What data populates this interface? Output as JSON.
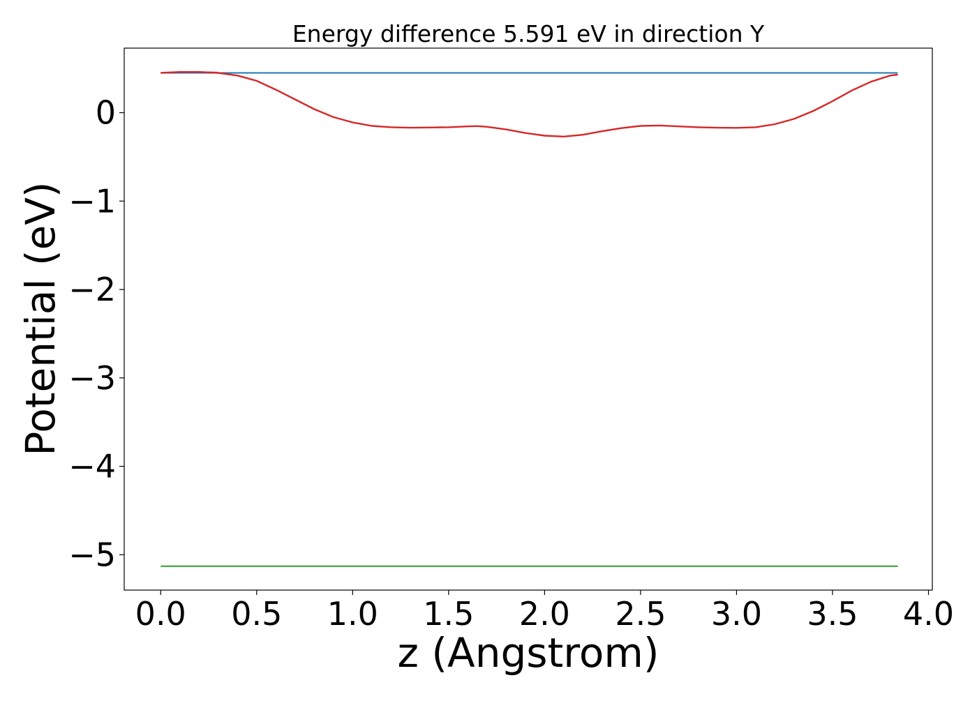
{
  "chart_data": {
    "type": "line",
    "title": "Energy difference 5.591 eV in direction Y",
    "xlabel": "z (Angstrom)",
    "ylabel": "Potential (eV)",
    "xlim": [
      -0.19,
      4.02
    ],
    "ylim": [
      -5.4,
      0.73
    ],
    "grid": false,
    "x_ticks": [
      {
        "value": 0.0,
        "label": "0.0"
      },
      {
        "value": 0.5,
        "label": "0.5"
      },
      {
        "value": 1.0,
        "label": "1.0"
      },
      {
        "value": 1.5,
        "label": "1.5"
      },
      {
        "value": 2.0,
        "label": "2.0"
      },
      {
        "value": 2.5,
        "label": "2.5"
      },
      {
        "value": 3.0,
        "label": "3.0"
      },
      {
        "value": 3.5,
        "label": "3.5"
      },
      {
        "value": 4.0,
        "label": "4.0"
      }
    ],
    "y_ticks": [
      {
        "value": 0,
        "label": "0"
      },
      {
        "value": -1,
        "label": "−1"
      },
      {
        "value": -2,
        "label": "−2"
      },
      {
        "value": -3,
        "label": "−3"
      },
      {
        "value": -4,
        "label": "−4"
      },
      {
        "value": -5,
        "label": "−5"
      }
    ],
    "series": [
      {
        "color": "#1f77b4",
        "x": [
          0.0,
          3.84
        ],
        "y": [
          0.45,
          0.45
        ]
      },
      {
        "color": "#2ca02c",
        "x": [
          0.0,
          3.84
        ],
        "y": [
          -5.13,
          -5.13
        ]
      },
      {
        "color": "#9467bd",
        "x": [
          0.0,
          0.1,
          0.2,
          0.3
        ],
        "y": [
          0.45,
          0.46,
          0.46,
          0.455
        ]
      },
      {
        "color": "#d62728",
        "x": [
          0.0,
          0.1,
          0.2,
          0.3,
          0.4,
          0.5,
          0.6,
          0.7,
          0.8,
          0.9,
          1.0,
          1.1,
          1.2,
          1.3,
          1.4,
          1.5,
          1.6,
          1.65,
          1.7,
          1.8,
          1.9,
          2.0,
          2.1,
          2.2,
          2.3,
          2.4,
          2.5,
          2.6,
          2.7,
          2.8,
          2.9,
          3.0,
          3.1,
          3.2,
          3.3,
          3.4,
          3.5,
          3.6,
          3.7,
          3.8,
          3.84
        ],
        "y": [
          0.45,
          0.46,
          0.46,
          0.45,
          0.42,
          0.36,
          0.26,
          0.15,
          0.04,
          -0.05,
          -0.11,
          -0.15,
          -0.165,
          -0.17,
          -0.168,
          -0.165,
          -0.155,
          -0.152,
          -0.16,
          -0.19,
          -0.23,
          -0.26,
          -0.27,
          -0.25,
          -0.21,
          -0.175,
          -0.15,
          -0.145,
          -0.155,
          -0.165,
          -0.17,
          -0.172,
          -0.165,
          -0.13,
          -0.07,
          0.02,
          0.13,
          0.25,
          0.35,
          0.42,
          0.43
        ]
      }
    ]
  }
}
